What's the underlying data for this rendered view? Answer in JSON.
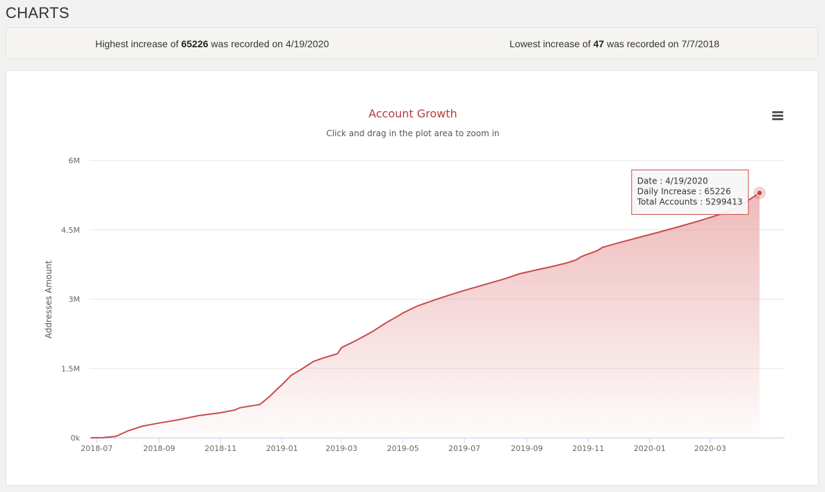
{
  "page": {
    "heading": "CHARTS"
  },
  "stats": {
    "highest": {
      "prefix": "Highest increase of ",
      "value": "65226",
      "suffix": " was recorded on 4/19/2020"
    },
    "lowest": {
      "prefix": "Lowest increase of ",
      "value": "47",
      "suffix": " was recorded on 7/7/2018"
    }
  },
  "chart_data": {
    "type": "area",
    "title": "Account Growth",
    "subtitle": "Click and drag in the plot area to zoom in",
    "ylabel": "Addresses Amount",
    "xlabel": "",
    "ylim": [
      0,
      6000000
    ],
    "xlim": [
      "2018-06-24",
      "2020-05-14"
    ],
    "grid": true,
    "yticks": [
      {
        "value": 0,
        "label": "0k"
      },
      {
        "value": 1500000,
        "label": "1.5M"
      },
      {
        "value": 3000000,
        "label": "3M"
      },
      {
        "value": 4500000,
        "label": "4.5M"
      },
      {
        "value": 6000000,
        "label": "6M"
      }
    ],
    "xticks": [
      {
        "value": "2018-07-01",
        "label": "2018-07"
      },
      {
        "value": "2018-09-01",
        "label": "2018-09"
      },
      {
        "value": "2018-11-01",
        "label": "2018-11"
      },
      {
        "value": "2019-01-01",
        "label": "2019-01"
      },
      {
        "value": "2019-03-01",
        "label": "2019-03"
      },
      {
        "value": "2019-05-01",
        "label": "2019-05"
      },
      {
        "value": "2019-07-01",
        "label": "2019-07"
      },
      {
        "value": "2019-09-01",
        "label": "2019-09"
      },
      {
        "value": "2019-11-01",
        "label": "2019-11"
      },
      {
        "value": "2020-01-01",
        "label": "2020-01"
      },
      {
        "value": "2020-03-01",
        "label": "2020-03"
      }
    ],
    "colors": {
      "line": "#c94a4a",
      "fill": "#e8a3a3",
      "title": "#b93a3a",
      "tooltip_border": "#c94a4a"
    },
    "series": [
      {
        "x": [
          "2018-06-25",
          "2018-07-07",
          "2018-07-20",
          "2018-08-01",
          "2018-08-15",
          "2018-09-01",
          "2018-09-20",
          "2018-10-10",
          "2018-10-31",
          "2018-11-15",
          "2018-11-20",
          "2018-12-10",
          "2018-12-20",
          "2018-12-26",
          "2019-01-01",
          "2019-01-10",
          "2019-01-20",
          "2019-02-01",
          "2019-02-10",
          "2019-02-25",
          "2019-03-01",
          "2019-03-15",
          "2019-04-01",
          "2019-04-15",
          "2019-04-25",
          "2019-05-01",
          "2019-05-15",
          "2019-06-01",
          "2019-06-15",
          "2019-07-01",
          "2019-07-20",
          "2019-08-10",
          "2019-08-25",
          "2019-09-10",
          "2019-09-25",
          "2019-10-10",
          "2019-10-20",
          "2019-10-25",
          "2019-11-10",
          "2019-11-15",
          "2019-12-01",
          "2019-12-20",
          "2020-01-10",
          "2020-02-01",
          "2020-02-20",
          "2020-03-10",
          "2020-03-25",
          "2020-04-05",
          "2020-04-19"
        ],
        "y": [
          0,
          5000,
          30000,
          150000,
          250000,
          320000,
          390000,
          480000,
          540000,
          600000,
          650000,
          720000,
          900000,
          1030000,
          1150000,
          1350000,
          1480000,
          1650000,
          1720000,
          1820000,
          1950000,
          2100000,
          2300000,
          2500000,
          2620000,
          2700000,
          2850000,
          2980000,
          3080000,
          3190000,
          3310000,
          3440000,
          3550000,
          3630000,
          3700000,
          3780000,
          3850000,
          3920000,
          4050000,
          4120000,
          4220000,
          4330000,
          4450000,
          4580000,
          4700000,
          4830000,
          4950000,
          5100000,
          5299413
        ]
      }
    ],
    "tooltip": {
      "date": "Date : 4/19/2020",
      "increase": "Daily Increase : 65226",
      "total": "Total Accounts : 5299413"
    }
  }
}
